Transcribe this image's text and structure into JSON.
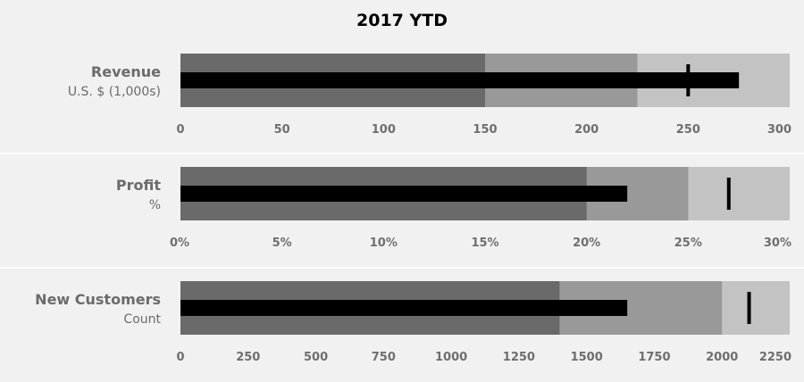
{
  "chart_data": {
    "type": "bullet",
    "title": "2017 YTD",
    "colors": {
      "band_poor": "#6a6a6a",
      "band_satisfactory": "#999999",
      "band_good": "#c3c3c3",
      "measure": "#000000",
      "target": "#000000"
    },
    "bullets": [
      {
        "title": "Revenue",
        "subtitle": "U.S. $ (1,000s)",
        "ranges": [
          150,
          225,
          300
        ],
        "measure": 275,
        "target": 250,
        "axis_max": 300,
        "ticks": [
          {
            "v": 0,
            "label": "0"
          },
          {
            "v": 50,
            "label": "50"
          },
          {
            "v": 100,
            "label": "100"
          },
          {
            "v": 150,
            "label": "150"
          },
          {
            "v": 200,
            "label": "200"
          },
          {
            "v": 250,
            "label": "250"
          },
          {
            "v": 300,
            "label": "300"
          }
        ]
      },
      {
        "title": "Profit",
        "subtitle": "%",
        "ranges": [
          20,
          25,
          30
        ],
        "measure": 22,
        "target": 27,
        "axis_max": 30,
        "ticks": [
          {
            "v": 0,
            "label": "0%"
          },
          {
            "v": 5,
            "label": "5%"
          },
          {
            "v": 10,
            "label": "10%"
          },
          {
            "v": 15,
            "label": "15%"
          },
          {
            "v": 20,
            "label": "20%"
          },
          {
            "v": 25,
            "label": "25%"
          },
          {
            "v": 30,
            "label": "30%"
          }
        ]
      },
      {
        "title": "New Customers",
        "subtitle": "Count",
        "ranges": [
          1400,
          2000,
          2250
        ],
        "measure": 1650,
        "target": 2100,
        "axis_max": 2250,
        "ticks": [
          {
            "v": 0,
            "label": "0"
          },
          {
            "v": 250,
            "label": "250"
          },
          {
            "v": 500,
            "label": "500"
          },
          {
            "v": 750,
            "label": "750"
          },
          {
            "v": 1000,
            "label": "1000"
          },
          {
            "v": 1250,
            "label": "1250"
          },
          {
            "v": 1500,
            "label": "1500"
          },
          {
            "v": 1750,
            "label": "1750"
          },
          {
            "v": 2000,
            "label": "2000"
          },
          {
            "v": 2250,
            "label": "2250"
          }
        ]
      }
    ]
  }
}
